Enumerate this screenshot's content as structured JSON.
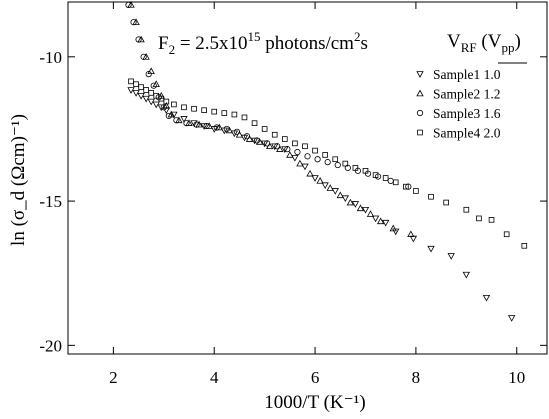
{
  "chart_data": {
    "type": "scatter",
    "xlabel": "1000/T (K⁻¹)",
    "ylabel": "ln (σ_d (Ωcm)⁻¹)",
    "xlim": [
      1.1,
      10.6
    ],
    "ylim": [
      -20.3,
      -8.1
    ],
    "xticks": [
      2,
      4,
      6,
      8,
      10
    ],
    "yticks": [
      -10,
      -15,
      -20
    ],
    "annotation": {
      "main": "F",
      "sub": "2",
      "rest": " = 2.5x10",
      "sup": "15",
      "tail1": " photons/cm",
      "sup2": "2",
      "tail2": "s"
    },
    "legend_title": {
      "main": "V",
      "sub": "RF",
      "mid": " (V",
      "sub2": "pp",
      "end": ")"
    },
    "legend_position": "top-right",
    "grid": false,
    "series": [
      {
        "name": "Sample1 1.0",
        "marker": "triangle-down",
        "points": [
          [
            2.35,
            -11.15
          ],
          [
            2.45,
            -11.25
          ],
          [
            2.55,
            -11.35
          ],
          [
            2.65,
            -11.45
          ],
          [
            2.75,
            -11.55
          ],
          [
            2.85,
            -11.65
          ],
          [
            2.95,
            -11.75
          ],
          [
            3.05,
            -11.85
          ],
          [
            3.2,
            -12.0
          ],
          [
            3.4,
            -12.15
          ],
          [
            3.6,
            -12.3
          ],
          [
            3.8,
            -12.4
          ],
          [
            4.0,
            -12.5
          ],
          [
            4.2,
            -12.55
          ],
          [
            4.4,
            -12.65
          ],
          [
            4.6,
            -12.8
          ],
          [
            4.8,
            -12.9
          ],
          [
            5.0,
            -13.0
          ],
          [
            5.2,
            -13.1
          ],
          [
            5.4,
            -13.2
          ],
          [
            5.6,
            -13.5
          ],
          [
            5.8,
            -13.8
          ],
          [
            6.0,
            -14.2
          ],
          [
            6.2,
            -14.45
          ],
          [
            6.4,
            -14.65
          ],
          [
            6.6,
            -14.9
          ],
          [
            6.8,
            -15.1
          ],
          [
            7.0,
            -15.3
          ],
          [
            7.2,
            -15.6
          ],
          [
            7.4,
            -15.75
          ],
          [
            7.6,
            -16.05
          ],
          [
            7.95,
            -16.3
          ],
          [
            8.3,
            -16.65
          ],
          [
            8.7,
            -16.9
          ],
          [
            9.0,
            -17.55
          ],
          [
            9.4,
            -18.35
          ],
          [
            9.9,
            -19.05
          ]
        ]
      },
      {
        "name": "Sample2 1.2",
        "marker": "triangle-up",
        "points": [
          [
            2.35,
            -8.2
          ],
          [
            2.45,
            -8.8
          ],
          [
            2.55,
            -9.4
          ],
          [
            2.65,
            -10.0
          ],
          [
            2.75,
            -10.5
          ],
          [
            2.85,
            -10.95
          ],
          [
            2.95,
            -11.35
          ],
          [
            3.05,
            -11.7
          ],
          [
            3.15,
            -12.0
          ],
          [
            3.3,
            -12.2
          ],
          [
            3.5,
            -12.3
          ],
          [
            3.7,
            -12.35
          ],
          [
            3.9,
            -12.4
          ],
          [
            4.1,
            -12.45
          ],
          [
            4.3,
            -12.55
          ],
          [
            4.5,
            -12.7
          ],
          [
            4.7,
            -12.85
          ],
          [
            4.9,
            -12.95
          ],
          [
            5.1,
            -13.1
          ],
          [
            5.3,
            -13.2
          ],
          [
            5.5,
            -13.4
          ],
          [
            5.7,
            -13.7
          ],
          [
            5.9,
            -14.05
          ],
          [
            6.1,
            -14.3
          ],
          [
            6.3,
            -14.55
          ],
          [
            6.5,
            -14.8
          ],
          [
            6.7,
            -15.05
          ],
          [
            6.9,
            -15.25
          ],
          [
            7.1,
            -15.45
          ],
          [
            7.3,
            -15.7
          ],
          [
            7.55,
            -15.95
          ],
          [
            7.9,
            -16.15
          ]
        ]
      },
      {
        "name": "Sample3 1.6",
        "marker": "circle",
        "points": [
          [
            2.3,
            -8.2
          ],
          [
            2.4,
            -8.8
          ],
          [
            2.5,
            -9.4
          ],
          [
            2.6,
            -10.0
          ],
          [
            2.7,
            -10.6
          ],
          [
            2.8,
            -11.0
          ],
          [
            2.9,
            -11.4
          ],
          [
            3.0,
            -11.75
          ],
          [
            3.1,
            -12.05
          ],
          [
            3.25,
            -12.2
          ],
          [
            3.45,
            -12.3
          ],
          [
            3.65,
            -12.35
          ],
          [
            3.85,
            -12.4
          ],
          [
            4.05,
            -12.45
          ],
          [
            4.25,
            -12.5
          ],
          [
            4.45,
            -12.6
          ],
          [
            4.65,
            -12.75
          ],
          [
            4.85,
            -12.9
          ],
          [
            5.05,
            -13.0
          ],
          [
            5.25,
            -13.1
          ],
          [
            5.45,
            -13.2
          ],
          [
            5.65,
            -13.3
          ],
          [
            5.85,
            -13.45
          ],
          [
            6.05,
            -13.55
          ],
          [
            6.25,
            -13.65
          ],
          [
            6.45,
            -13.75
          ],
          [
            6.65,
            -13.85
          ],
          [
            6.85,
            -13.95
          ],
          [
            7.05,
            -14.05
          ],
          [
            7.25,
            -14.15
          ],
          [
            7.5,
            -14.3
          ],
          [
            7.85,
            -14.5
          ]
        ]
      },
      {
        "name": "Sample4 2.0",
        "marker": "square",
        "points": [
          [
            2.35,
            -10.85
          ],
          [
            2.45,
            -10.95
          ],
          [
            2.55,
            -11.05
          ],
          [
            2.65,
            -11.15
          ],
          [
            2.75,
            -11.25
          ],
          [
            2.85,
            -11.35
          ],
          [
            2.95,
            -11.45
          ],
          [
            3.05,
            -11.55
          ],
          [
            3.2,
            -11.65
          ],
          [
            3.4,
            -11.75
          ],
          [
            3.6,
            -11.8
          ],
          [
            3.8,
            -11.85
          ],
          [
            4.0,
            -11.9
          ],
          [
            4.2,
            -11.95
          ],
          [
            4.4,
            -12.0
          ],
          [
            4.6,
            -12.1
          ],
          [
            4.8,
            -12.3
          ],
          [
            5.0,
            -12.5
          ],
          [
            5.2,
            -12.7
          ],
          [
            5.4,
            -12.85
          ],
          [
            5.6,
            -13.0
          ],
          [
            5.8,
            -13.1
          ],
          [
            6.0,
            -13.25
          ],
          [
            6.2,
            -13.4
          ],
          [
            6.4,
            -13.55
          ],
          [
            6.6,
            -13.7
          ],
          [
            6.8,
            -13.85
          ],
          [
            7.0,
            -13.95
          ],
          [
            7.2,
            -14.1
          ],
          [
            7.4,
            -14.2
          ],
          [
            7.6,
            -14.35
          ],
          [
            7.8,
            -14.5
          ],
          [
            8.0,
            -14.65
          ],
          [
            8.3,
            -14.85
          ],
          [
            8.6,
            -15.05
          ],
          [
            9.0,
            -15.3
          ],
          [
            9.25,
            -15.6
          ],
          [
            9.5,
            -15.65
          ],
          [
            9.8,
            -16.15
          ],
          [
            10.15,
            -16.55
          ]
        ]
      }
    ]
  }
}
